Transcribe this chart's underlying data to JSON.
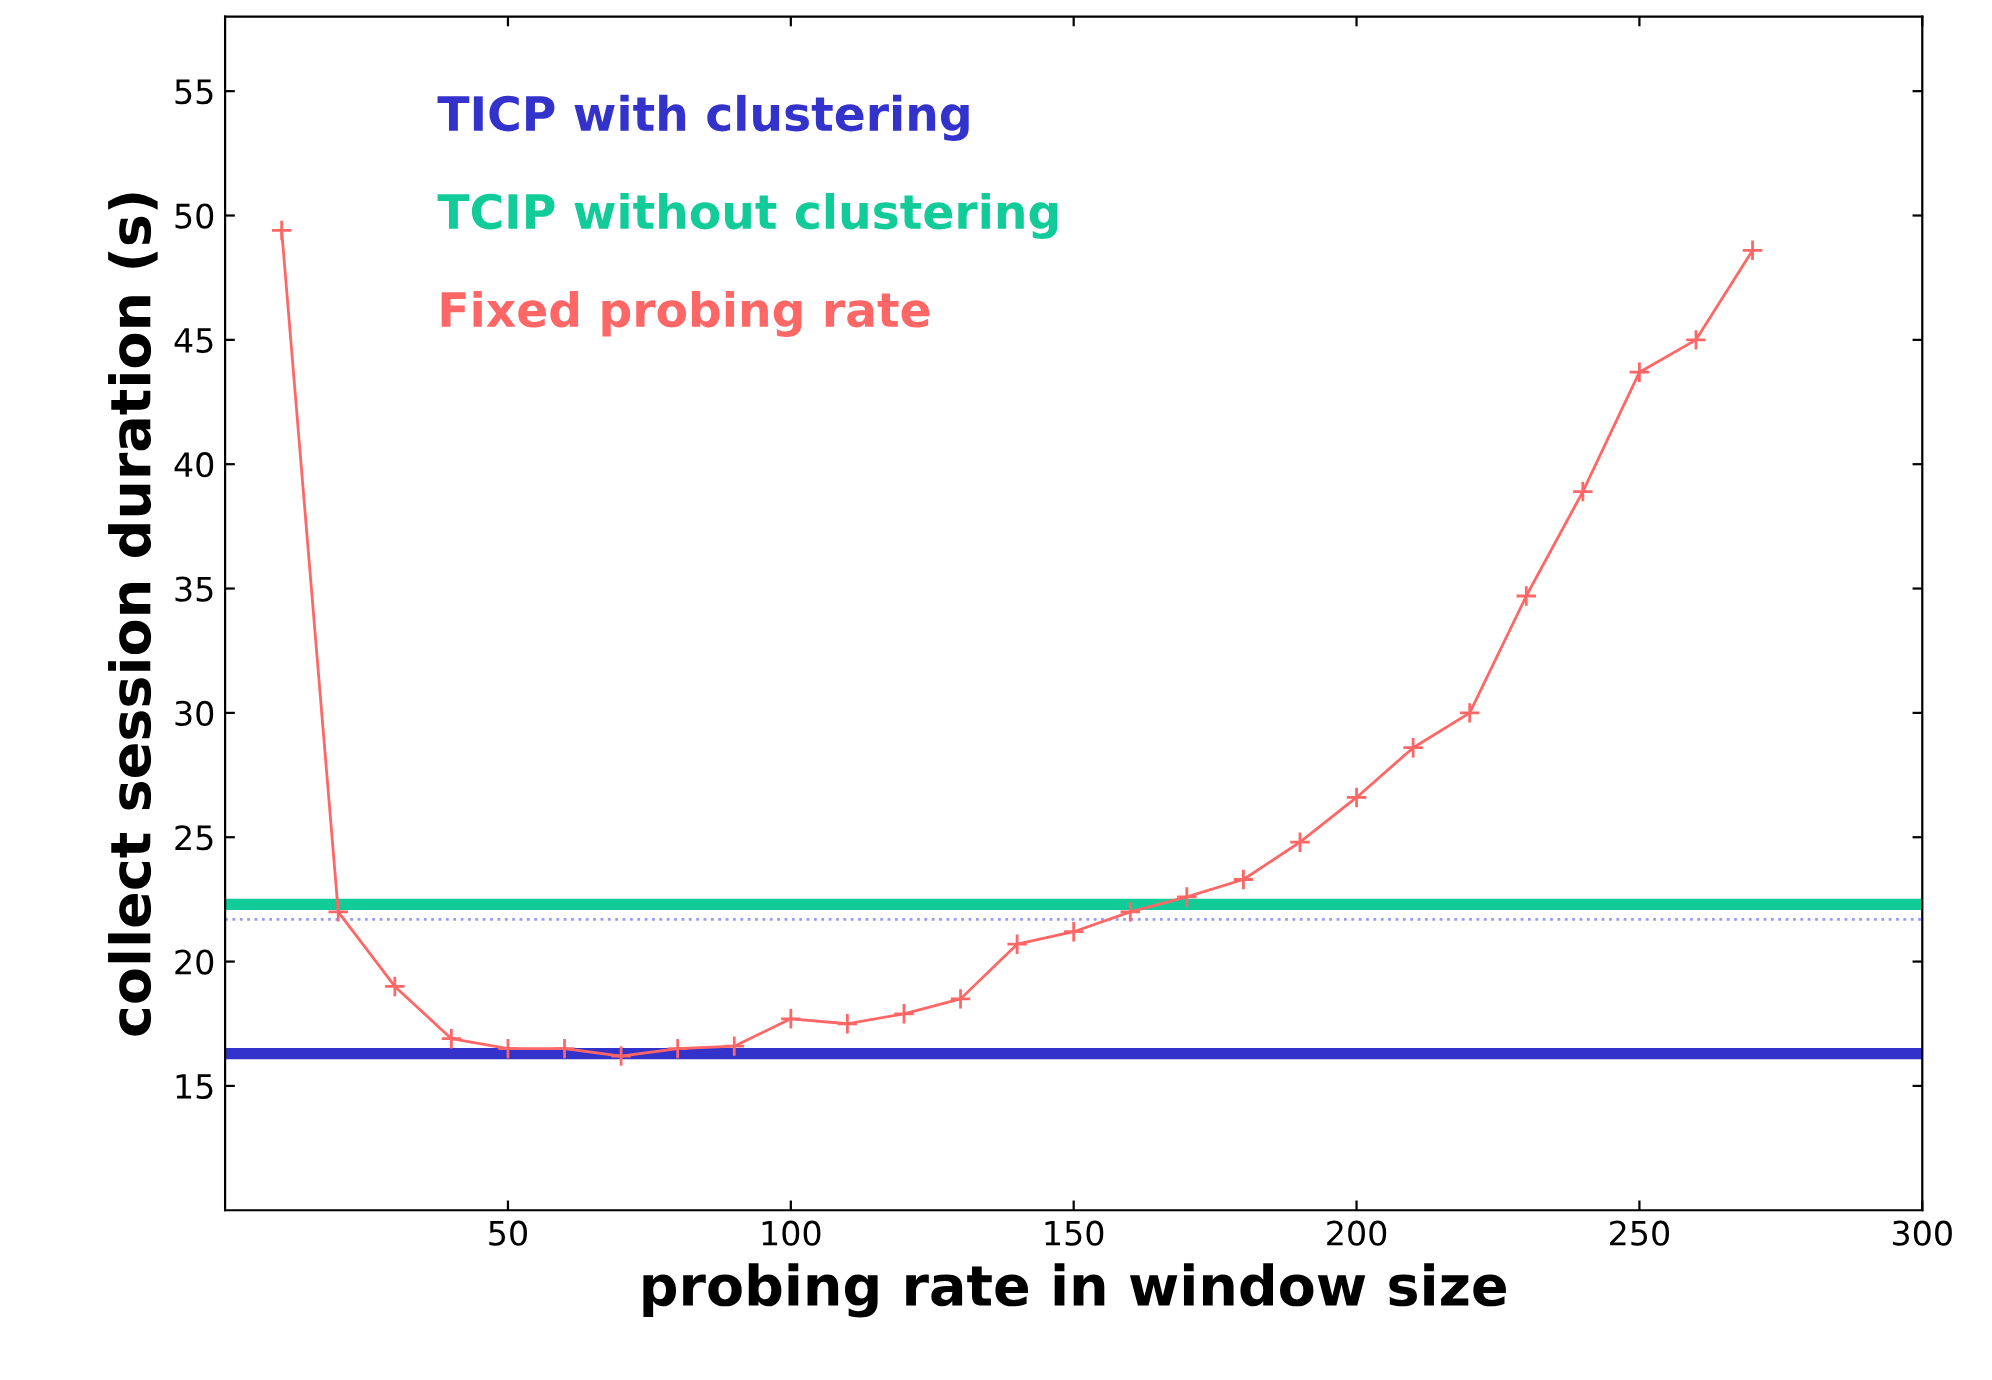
{
  "chart_data": {
    "type": "line",
    "xlabel": "probing rate in window size",
    "ylabel": "collect session duration (s)",
    "x": [
      10,
      20,
      30,
      40,
      50,
      60,
      70,
      80,
      90,
      100,
      110,
      120,
      130,
      140,
      150,
      160,
      170,
      180,
      190,
      200,
      210,
      220,
      230,
      240,
      250,
      260,
      270
    ],
    "series": [
      {
        "name": "Fixed probing rate",
        "color": "#ff6666",
        "values": [
          49.4,
          22.0,
          19.0,
          16.9,
          16.5,
          16.5,
          16.2,
          16.5,
          16.6,
          17.7,
          17.5,
          17.9,
          18.5,
          20.7,
          21.2,
          22.0,
          22.6,
          23.3,
          24.8,
          26.6,
          28.6,
          30.0,
          34.7,
          38.9,
          43.7,
          45.0,
          48.6
        ]
      }
    ],
    "ref_lines": [
      {
        "axis": "y",
        "value": 16.3,
        "label": "TICP with clustering",
        "color": "#3333cc",
        "line_style": "solid"
      },
      {
        "axis": "y",
        "value": 22.3,
        "label": "TCIP without clustering",
        "color": "#11cc99",
        "line_style": "solid"
      },
      {
        "axis": "y",
        "value": 21.7,
        "color": "#9999ff",
        "line_style": "dotted"
      }
    ],
    "xlim": [
      0,
      300
    ],
    "ylim": [
      10,
      58
    ],
    "xticks": [
      50,
      100,
      150,
      200,
      250,
      300
    ],
    "yticks": [
      15,
      20,
      25,
      30,
      35,
      40,
      45,
      50,
      55
    ],
    "marker": "cross",
    "line_style": "solid",
    "grid": false,
    "legend": "top left"
  }
}
